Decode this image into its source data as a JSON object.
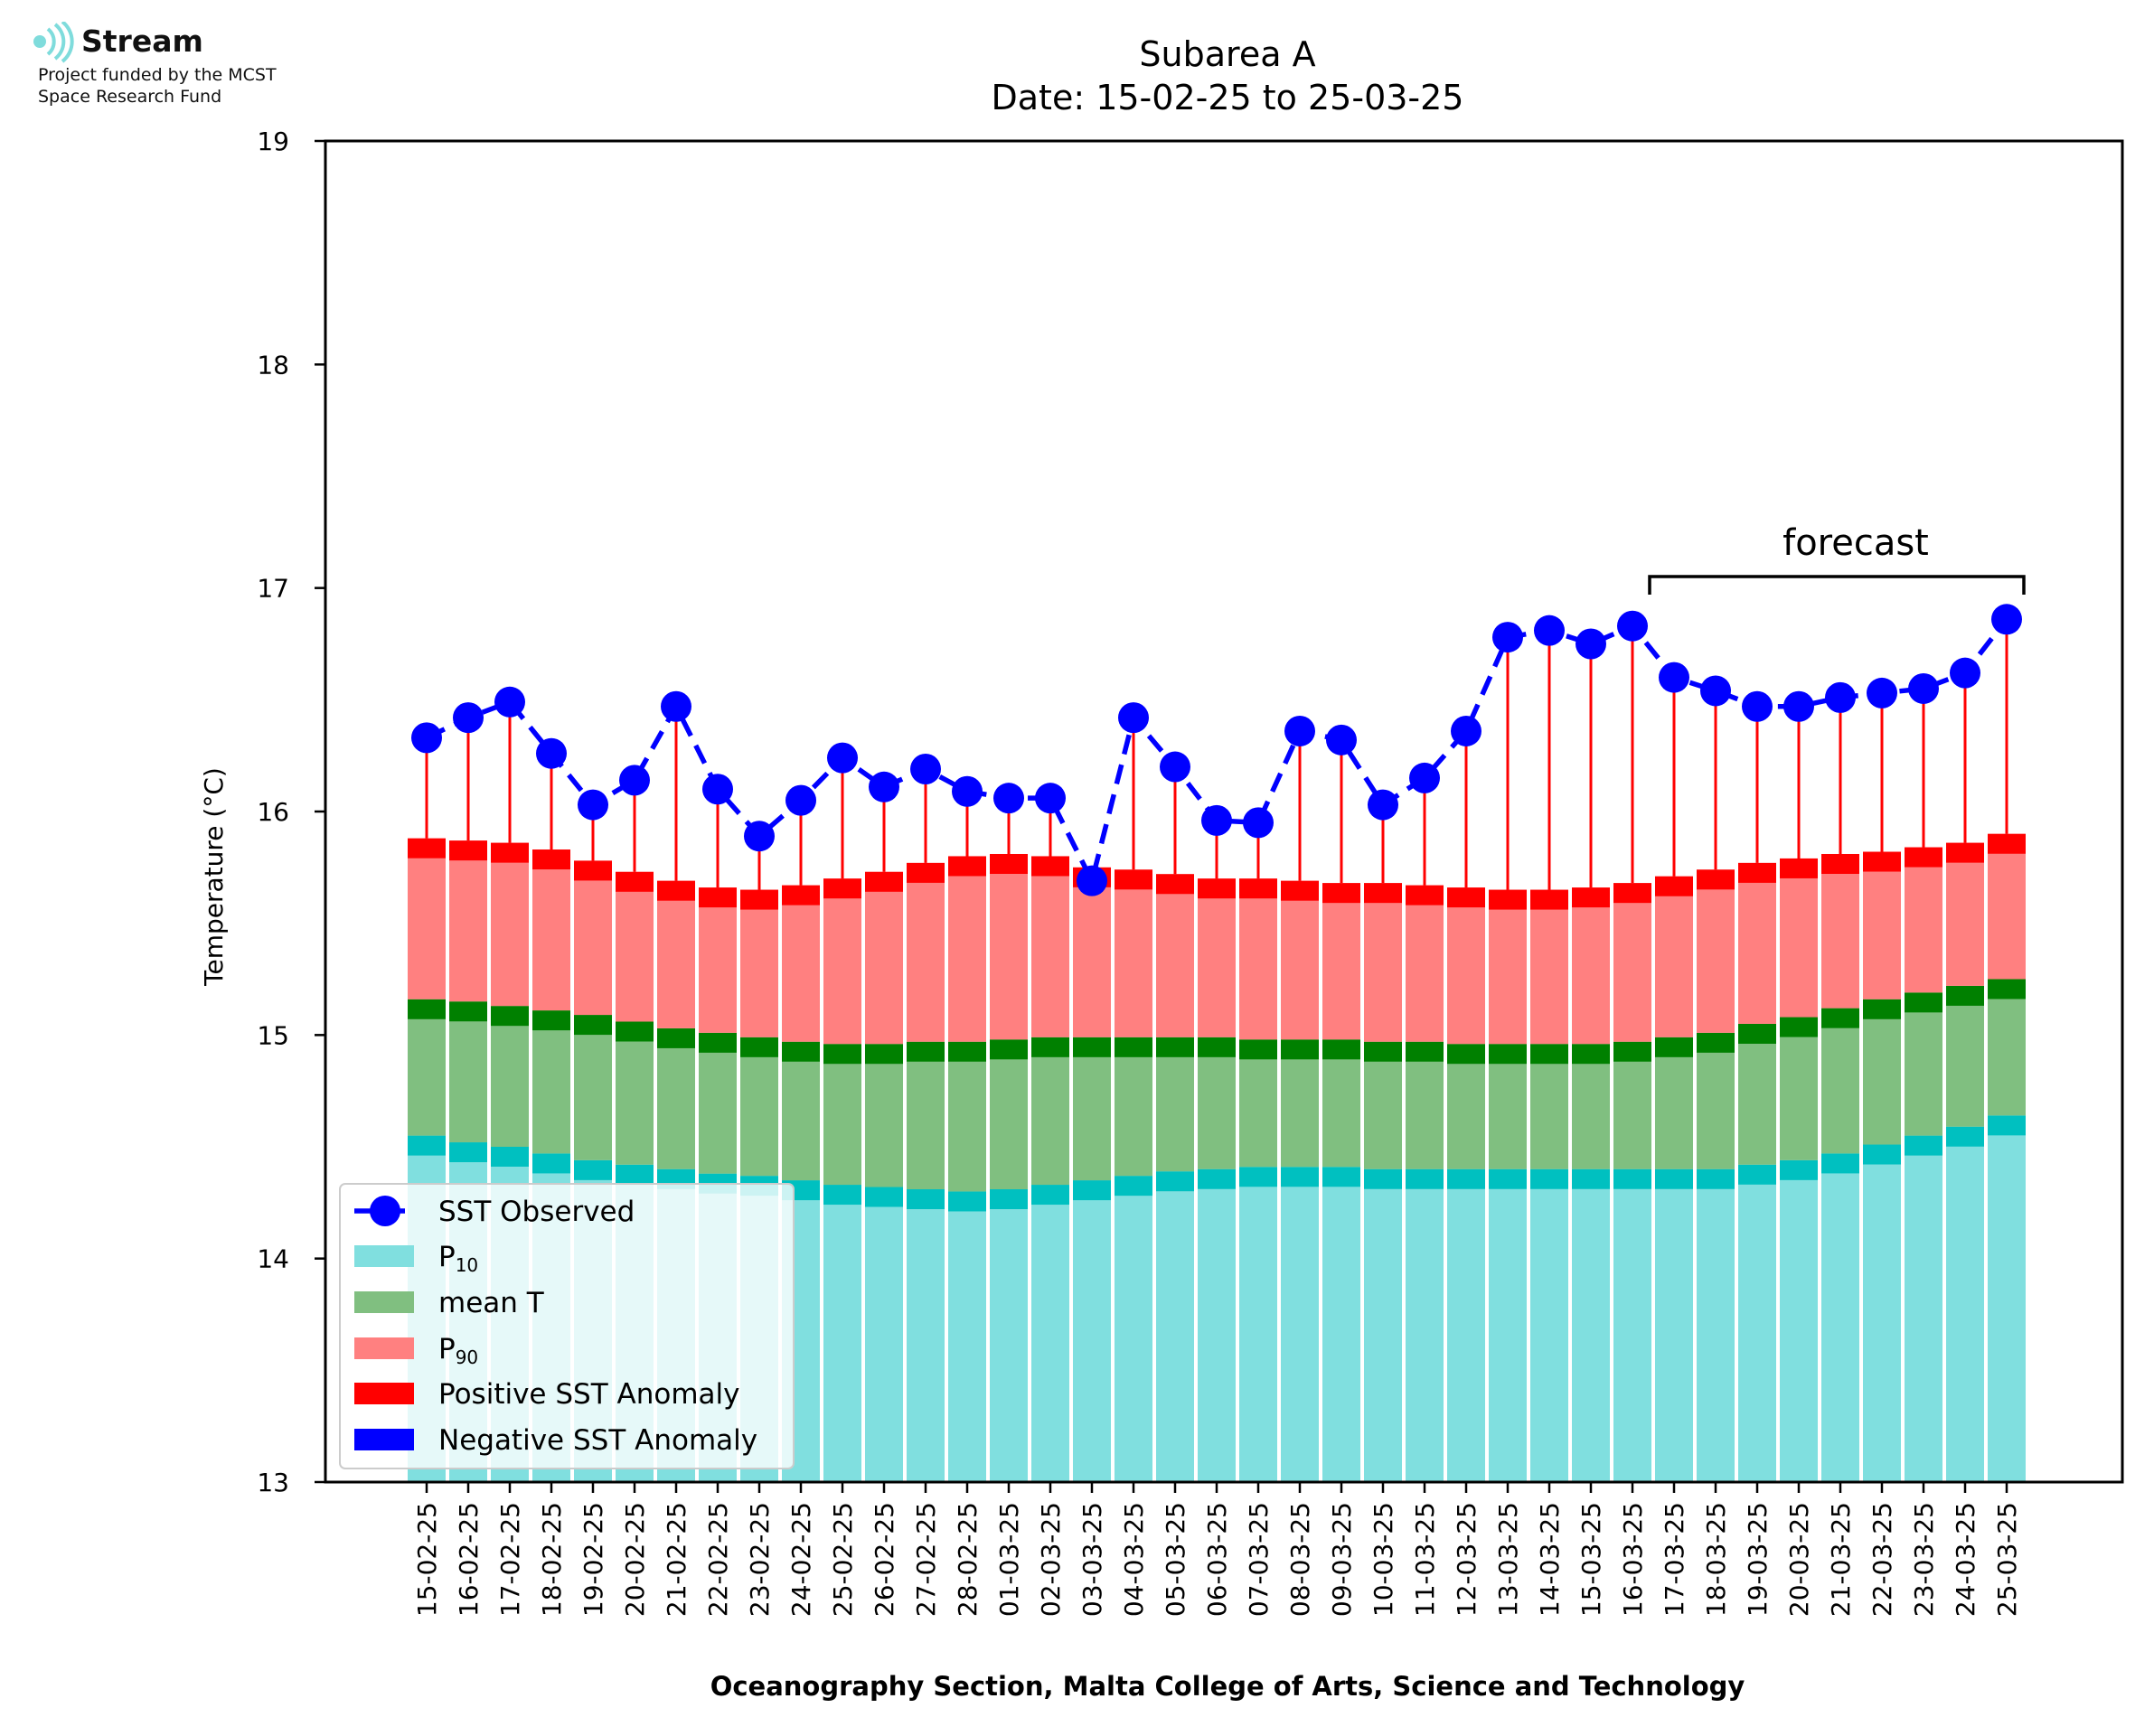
{
  "logo": {
    "name": "Stream",
    "line1": "Project funded by the MCST",
    "line2": "Space Research Fund",
    "color": "#7fdcdc"
  },
  "chart_data": {
    "type": "bar",
    "title": "Subarea A",
    "subtitle": "Date: 15-02-25 to 25-03-25",
    "xlabel": "Oceanography Section, Malta College of Arts, Science and Technology",
    "ylabel": "Temperature (°C)",
    "ylim": [
      13,
      19
    ],
    "yticks": [
      13,
      14,
      15,
      16,
      17,
      18,
      19
    ],
    "grid": false,
    "legend_position": "lower-left",
    "annotation": "forecast",
    "forecast_range": [
      "17-03-25",
      "25-03-25"
    ],
    "categories": [
      "15-02-25",
      "16-02-25",
      "17-02-25",
      "18-02-25",
      "19-02-25",
      "20-02-25",
      "21-02-25",
      "22-02-25",
      "23-02-25",
      "24-02-25",
      "25-02-25",
      "26-02-25",
      "27-02-25",
      "28-02-25",
      "01-03-25",
      "02-03-25",
      "03-03-25",
      "04-03-25",
      "05-03-25",
      "06-03-25",
      "07-03-25",
      "08-03-25",
      "09-03-25",
      "10-03-25",
      "11-03-25",
      "12-03-25",
      "13-03-25",
      "14-03-25",
      "15-03-25",
      "16-03-25",
      "17-03-25",
      "18-03-25",
      "19-03-25",
      "20-03-25",
      "21-03-25",
      "22-03-25",
      "23-03-25",
      "24-03-25",
      "25-03-25"
    ],
    "series": [
      {
        "name": "SST Observed",
        "color": "#0000ff",
        "style": "dashed-marker",
        "values": [
          16.33,
          16.42,
          16.49,
          16.26,
          16.03,
          16.14,
          16.47,
          16.1,
          15.89,
          16.05,
          16.24,
          16.11,
          16.19,
          16.09,
          16.06,
          16.06,
          15.69,
          16.42,
          16.2,
          15.96,
          15.95,
          16.36,
          16.32,
          16.03,
          16.15,
          16.36,
          16.78,
          16.81,
          16.75,
          16.83,
          16.6,
          16.54,
          16.47,
          16.47,
          16.51,
          16.53,
          16.55,
          16.62,
          16.86
        ]
      },
      {
        "name": "P10",
        "label_base": "P",
        "label_sub": "10",
        "color": "#80dfdf",
        "edge_color": "#00c0c0",
        "values": [
          14.55,
          14.52,
          14.5,
          14.47,
          14.44,
          14.42,
          14.4,
          14.38,
          14.37,
          14.35,
          14.33,
          14.32,
          14.31,
          14.3,
          14.31,
          14.33,
          14.35,
          14.37,
          14.39,
          14.4,
          14.41,
          14.41,
          14.41,
          14.4,
          14.4,
          14.4,
          14.4,
          14.4,
          14.4,
          14.4,
          14.4,
          14.4,
          14.42,
          14.44,
          14.47,
          14.51,
          14.55,
          14.59,
          14.64
        ]
      },
      {
        "name": "mean T",
        "color": "#80bf80",
        "edge_color": "#008000",
        "values": [
          15.16,
          15.15,
          15.13,
          15.11,
          15.09,
          15.06,
          15.03,
          15.01,
          14.99,
          14.97,
          14.96,
          14.96,
          14.97,
          14.97,
          14.98,
          14.99,
          14.99,
          14.99,
          14.99,
          14.99,
          14.98,
          14.98,
          14.98,
          14.97,
          14.97,
          14.96,
          14.96,
          14.96,
          14.96,
          14.97,
          14.99,
          15.01,
          15.05,
          15.08,
          15.12,
          15.16,
          15.19,
          15.22,
          15.25
        ]
      },
      {
        "name": "P90",
        "label_base": "P",
        "label_sub": "90",
        "color": "#ff8080",
        "edge_color": "#ff0000",
        "values": [
          15.88,
          15.87,
          15.86,
          15.83,
          15.78,
          15.73,
          15.69,
          15.66,
          15.65,
          15.67,
          15.7,
          15.73,
          15.77,
          15.8,
          15.81,
          15.8,
          15.75,
          15.74,
          15.72,
          15.7,
          15.7,
          15.69,
          15.68,
          15.68,
          15.67,
          15.66,
          15.65,
          15.65,
          15.66,
          15.68,
          15.71,
          15.74,
          15.77,
          15.79,
          15.81,
          15.82,
          15.84,
          15.86,
          15.9
        ]
      },
      {
        "name": "Positive SST Anomaly",
        "color": "#ff0000"
      },
      {
        "name": "Negative SST Anomaly",
        "color": "#0000ff"
      }
    ]
  }
}
